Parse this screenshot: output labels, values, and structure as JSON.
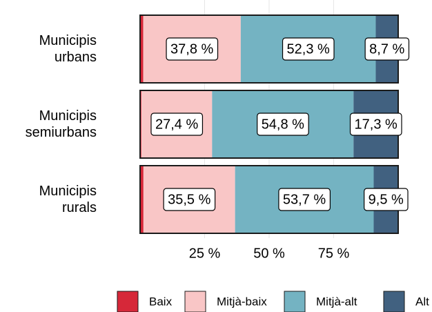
{
  "chart_data": {
    "type": "bar",
    "orientation": "horizontal",
    "stacked": true,
    "categories": [
      "Municipis urbans",
      "Municipis semiurbans",
      "Municipis rurals"
    ],
    "series": [
      {
        "name": "Baix",
        "color": "#d62839",
        "values": [
          1.2,
          0.5,
          1.3
        ]
      },
      {
        "name": "Mitjà-baix",
        "color": "#f9c6c6",
        "values": [
          37.8,
          27.4,
          35.5
        ],
        "value_labels": [
          "37,8 %",
          "27,4 %",
          "35,5 %"
        ]
      },
      {
        "name": "Mitjà-alt",
        "color": "#74b3c2",
        "values": [
          52.3,
          54.8,
          53.7
        ],
        "value_labels": [
          "52,3 %",
          "54,8 %",
          "53,7 %"
        ]
      },
      {
        "name": "Alt",
        "color": "#416180",
        "values": [
          8.7,
          17.3,
          9.5
        ],
        "value_labels": [
          "8,7 %",
          "17,3 %",
          "9,5 %"
        ]
      }
    ],
    "xlim": [
      0,
      100
    ],
    "xticks": [
      {
        "value": 25,
        "label": "25 %"
      },
      {
        "value": 50,
        "label": "50 %"
      },
      {
        "value": 75,
        "label": "75 %"
      }
    ],
    "grid": true,
    "legend": "bottom"
  }
}
